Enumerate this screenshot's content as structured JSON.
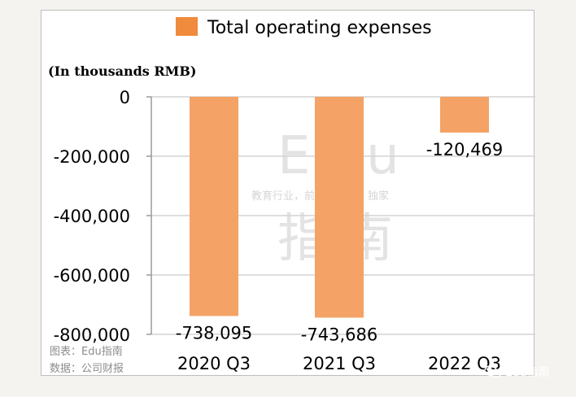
{
  "chart_data": {
    "type": "bar",
    "title": "",
    "unit_note": "(In thousands RMB)",
    "xlabel": "",
    "ylabel": "",
    "categories": [
      "2020 Q3",
      "2021 Q3",
      "2022 Q3"
    ],
    "series": [
      {
        "name": "Total operating expenses",
        "values": [
          -738095,
          -743686,
          -120469
        ]
      }
    ],
    "data_labels": [
      "-738,095",
      "-743,686",
      "-120,469"
    ],
    "ylim": [
      -800000,
      0
    ],
    "yticks": [
      0,
      -200000,
      -400000,
      -600000,
      -800000
    ],
    "ytick_labels": [
      "0",
      "-200,000",
      "-400,000",
      "-600,000",
      "-800,000"
    ],
    "grid": true,
    "legend_position": "top",
    "colors": {
      "bar": "#f4a266",
      "legend_swatch": "#f08a3c",
      "grid": "#d4d4d4",
      "axis": "#9a9a9a"
    }
  },
  "watermark": {
    "brand": "Edu",
    "subtitle": "教育行业，前沿、深度、独家",
    "name": "指南"
  },
  "source": {
    "chart_by": "图表：Edu指南",
    "data_from": "数据：公司财报"
  },
  "badge": {
    "icon": "wechat-icon",
    "text": "Edu指南"
  }
}
